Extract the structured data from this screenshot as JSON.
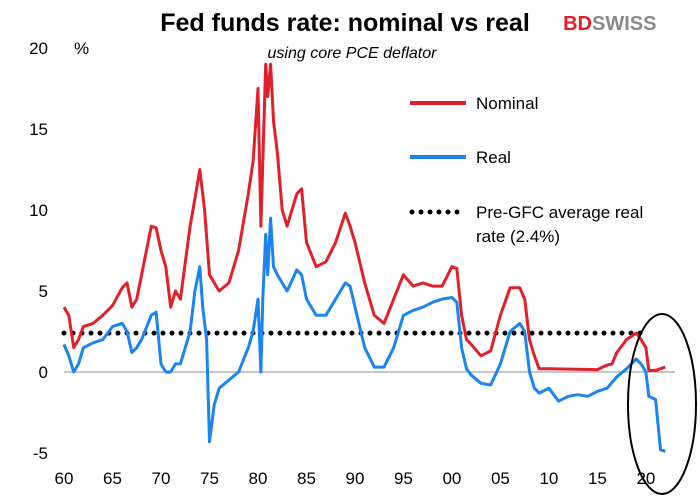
{
  "chart_data": {
    "type": "line",
    "title": "Fed funds rate: nominal vs real",
    "subtitle": "using core PCE deflator",
    "y_unit": "%",
    "brand": {
      "part1": "BD",
      "part2": "SWISS"
    },
    "xlim": [
      1960,
      2023
    ],
    "ylim": [
      -5,
      20
    ],
    "x_ticks": [
      1960,
      1965,
      1970,
      1975,
      1980,
      1985,
      1990,
      1995,
      2000,
      2005,
      2010,
      2015,
      2020
    ],
    "x_tick_labels": [
      "60",
      "65",
      "70",
      "75",
      "80",
      "85",
      "90",
      "95",
      "00",
      "05",
      "10",
      "15",
      "20"
    ],
    "y_ticks": [
      -5,
      0,
      5,
      10,
      15,
      20
    ],
    "y_tick_labels": [
      "-5",
      "0",
      "5",
      "10",
      "15",
      "20"
    ],
    "grid": false,
    "legend_position": "right",
    "series": [
      {
        "name": "Nominal",
        "color": "#e0202a",
        "x": [
          1960,
          1960.5,
          1961,
          1961.5,
          1962,
          1963,
          1964,
          1965,
          1966,
          1966.5,
          1967,
          1967.5,
          1968,
          1969,
          1969.5,
          1970,
          1970.5,
          1971,
          1971.5,
          1972,
          1973,
          1973.5,
          1974,
          1974.5,
          1975,
          1975.5,
          1976,
          1977,
          1978,
          1979,
          1979.5,
          1980,
          1980.3,
          1980.5,
          1980.8,
          1981,
          1981.3,
          1981.6,
          1982,
          1982.5,
          1983,
          1984,
          1984.5,
          1985,
          1986,
          1987,
          1988,
          1989,
          1989.5,
          1990,
          1991,
          1992,
          1993,
          1994,
          1995,
          1996,
          1997,
          1998,
          1999,
          2000,
          2000.5,
          2001,
          2001.5,
          2002,
          2003,
          2004,
          2005,
          2006,
          2007,
          2007.5,
          2008,
          2008.5,
          2009,
          2010,
          2015,
          2015.9,
          2016.5,
          2017,
          2018,
          2019,
          2019.5,
          2020,
          2020.3,
          2021,
          2022
        ],
        "y": [
          4.0,
          3.5,
          1.5,
          2.0,
          2.8,
          3.0,
          3.5,
          4.1,
          5.2,
          5.5,
          4.0,
          4.5,
          6.0,
          9.0,
          8.9,
          7.5,
          6.5,
          4.0,
          5.0,
          4.5,
          9.0,
          10.7,
          12.5,
          10.0,
          6.0,
          5.5,
          5.0,
          5.5,
          7.5,
          11.0,
          13.0,
          17.5,
          9.0,
          13.0,
          19.0,
          17.0,
          19.0,
          15.5,
          13.5,
          10.0,
          9.0,
          11.0,
          11.3,
          8.0,
          6.5,
          6.8,
          8.0,
          9.8,
          9.0,
          8.0,
          5.5,
          3.5,
          3.0,
          4.5,
          6.0,
          5.3,
          5.5,
          5.3,
          5.3,
          6.5,
          6.4,
          3.5,
          2.0,
          1.7,
          1.0,
          1.3,
          3.5,
          5.2,
          5.2,
          4.5,
          2.0,
          1.0,
          0.2,
          0.2,
          0.15,
          0.4,
          0.5,
          1.2,
          2.0,
          2.4,
          2.0,
          1.5,
          0.1,
          0.1,
          0.3
        ]
      },
      {
        "name": "Real",
        "color": "#1b84f0",
        "x": [
          1960,
          1960.5,
          1961,
          1961.5,
          1962,
          1963,
          1964,
          1965,
          1966,
          1966.5,
          1967,
          1967.5,
          1968,
          1969,
          1969.5,
          1970,
          1970.5,
          1971,
          1971.5,
          1972,
          1973,
          1973.5,
          1974,
          1974.3,
          1974.7,
          1975,
          1975.5,
          1976,
          1977,
          1978,
          1979,
          1979.5,
          1980,
          1980.3,
          1980.5,
          1980.8,
          1981,
          1981.3,
          1981.6,
          1982,
          1982.5,
          1983,
          1984,
          1984.5,
          1985,
          1986,
          1987,
          1988,
          1989,
          1989.5,
          1990,
          1991,
          1992,
          1993,
          1994,
          1995,
          1996,
          1997,
          1998,
          1999,
          2000,
          2000.5,
          2001,
          2001.5,
          2002,
          2003,
          2004,
          2005,
          2006,
          2007,
          2007.5,
          2008,
          2008.5,
          2009,
          2010,
          2011,
          2012,
          2013,
          2014,
          2015,
          2016,
          2017,
          2018,
          2019,
          2019.5,
          2020,
          2020.3,
          2021,
          2021.5,
          2022
        ],
        "y": [
          1.7,
          1.0,
          0.0,
          0.5,
          1.5,
          1.8,
          2.0,
          2.8,
          3.0,
          2.5,
          1.2,
          1.5,
          2.0,
          3.5,
          3.7,
          0.5,
          0.0,
          0.0,
          0.5,
          0.5,
          2.5,
          5.0,
          6.5,
          4.0,
          2.0,
          -4.3,
          -2.0,
          -1.0,
          -0.5,
          0.0,
          1.5,
          2.5,
          4.5,
          0.0,
          4.5,
          8.5,
          6.0,
          9.5,
          6.5,
          6.0,
          5.5,
          5.0,
          6.3,
          6.0,
          4.5,
          3.5,
          3.5,
          4.5,
          5.5,
          5.3,
          4.0,
          1.5,
          0.3,
          0.3,
          1.5,
          3.5,
          3.8,
          4.0,
          4.3,
          4.5,
          4.6,
          4.3,
          1.5,
          0.2,
          -0.2,
          -0.7,
          -0.8,
          0.5,
          2.5,
          3.0,
          2.5,
          0.0,
          -1.0,
          -1.3,
          -1.0,
          -1.8,
          -1.5,
          -1.4,
          -1.5,
          -1.2,
          -1.0,
          -0.3,
          0.2,
          0.8,
          0.5,
          0.0,
          -1.5,
          -1.7,
          -4.8,
          -4.9
        ]
      }
    ],
    "reference_lines": [
      {
        "name": "Pre-GFC average real rate (2.4%)",
        "value": 2.4,
        "x_range": [
          1960,
          2020
        ],
        "style": "dotted",
        "color": "#000000"
      }
    ],
    "legend": [
      {
        "label": "Nominal",
        "style": "line",
        "color": "#e0202a"
      },
      {
        "label": "Real",
        "style": "line",
        "color": "#1b84f0"
      },
      {
        "label_lines": [
          "Pre-GFC average real",
          "rate (2.4%)"
        ],
        "style": "dotted",
        "color": "#000000"
      }
    ],
    "annotation": {
      "shape": "ellipse",
      "around_years": [
        2018,
        2023
      ]
    }
  }
}
